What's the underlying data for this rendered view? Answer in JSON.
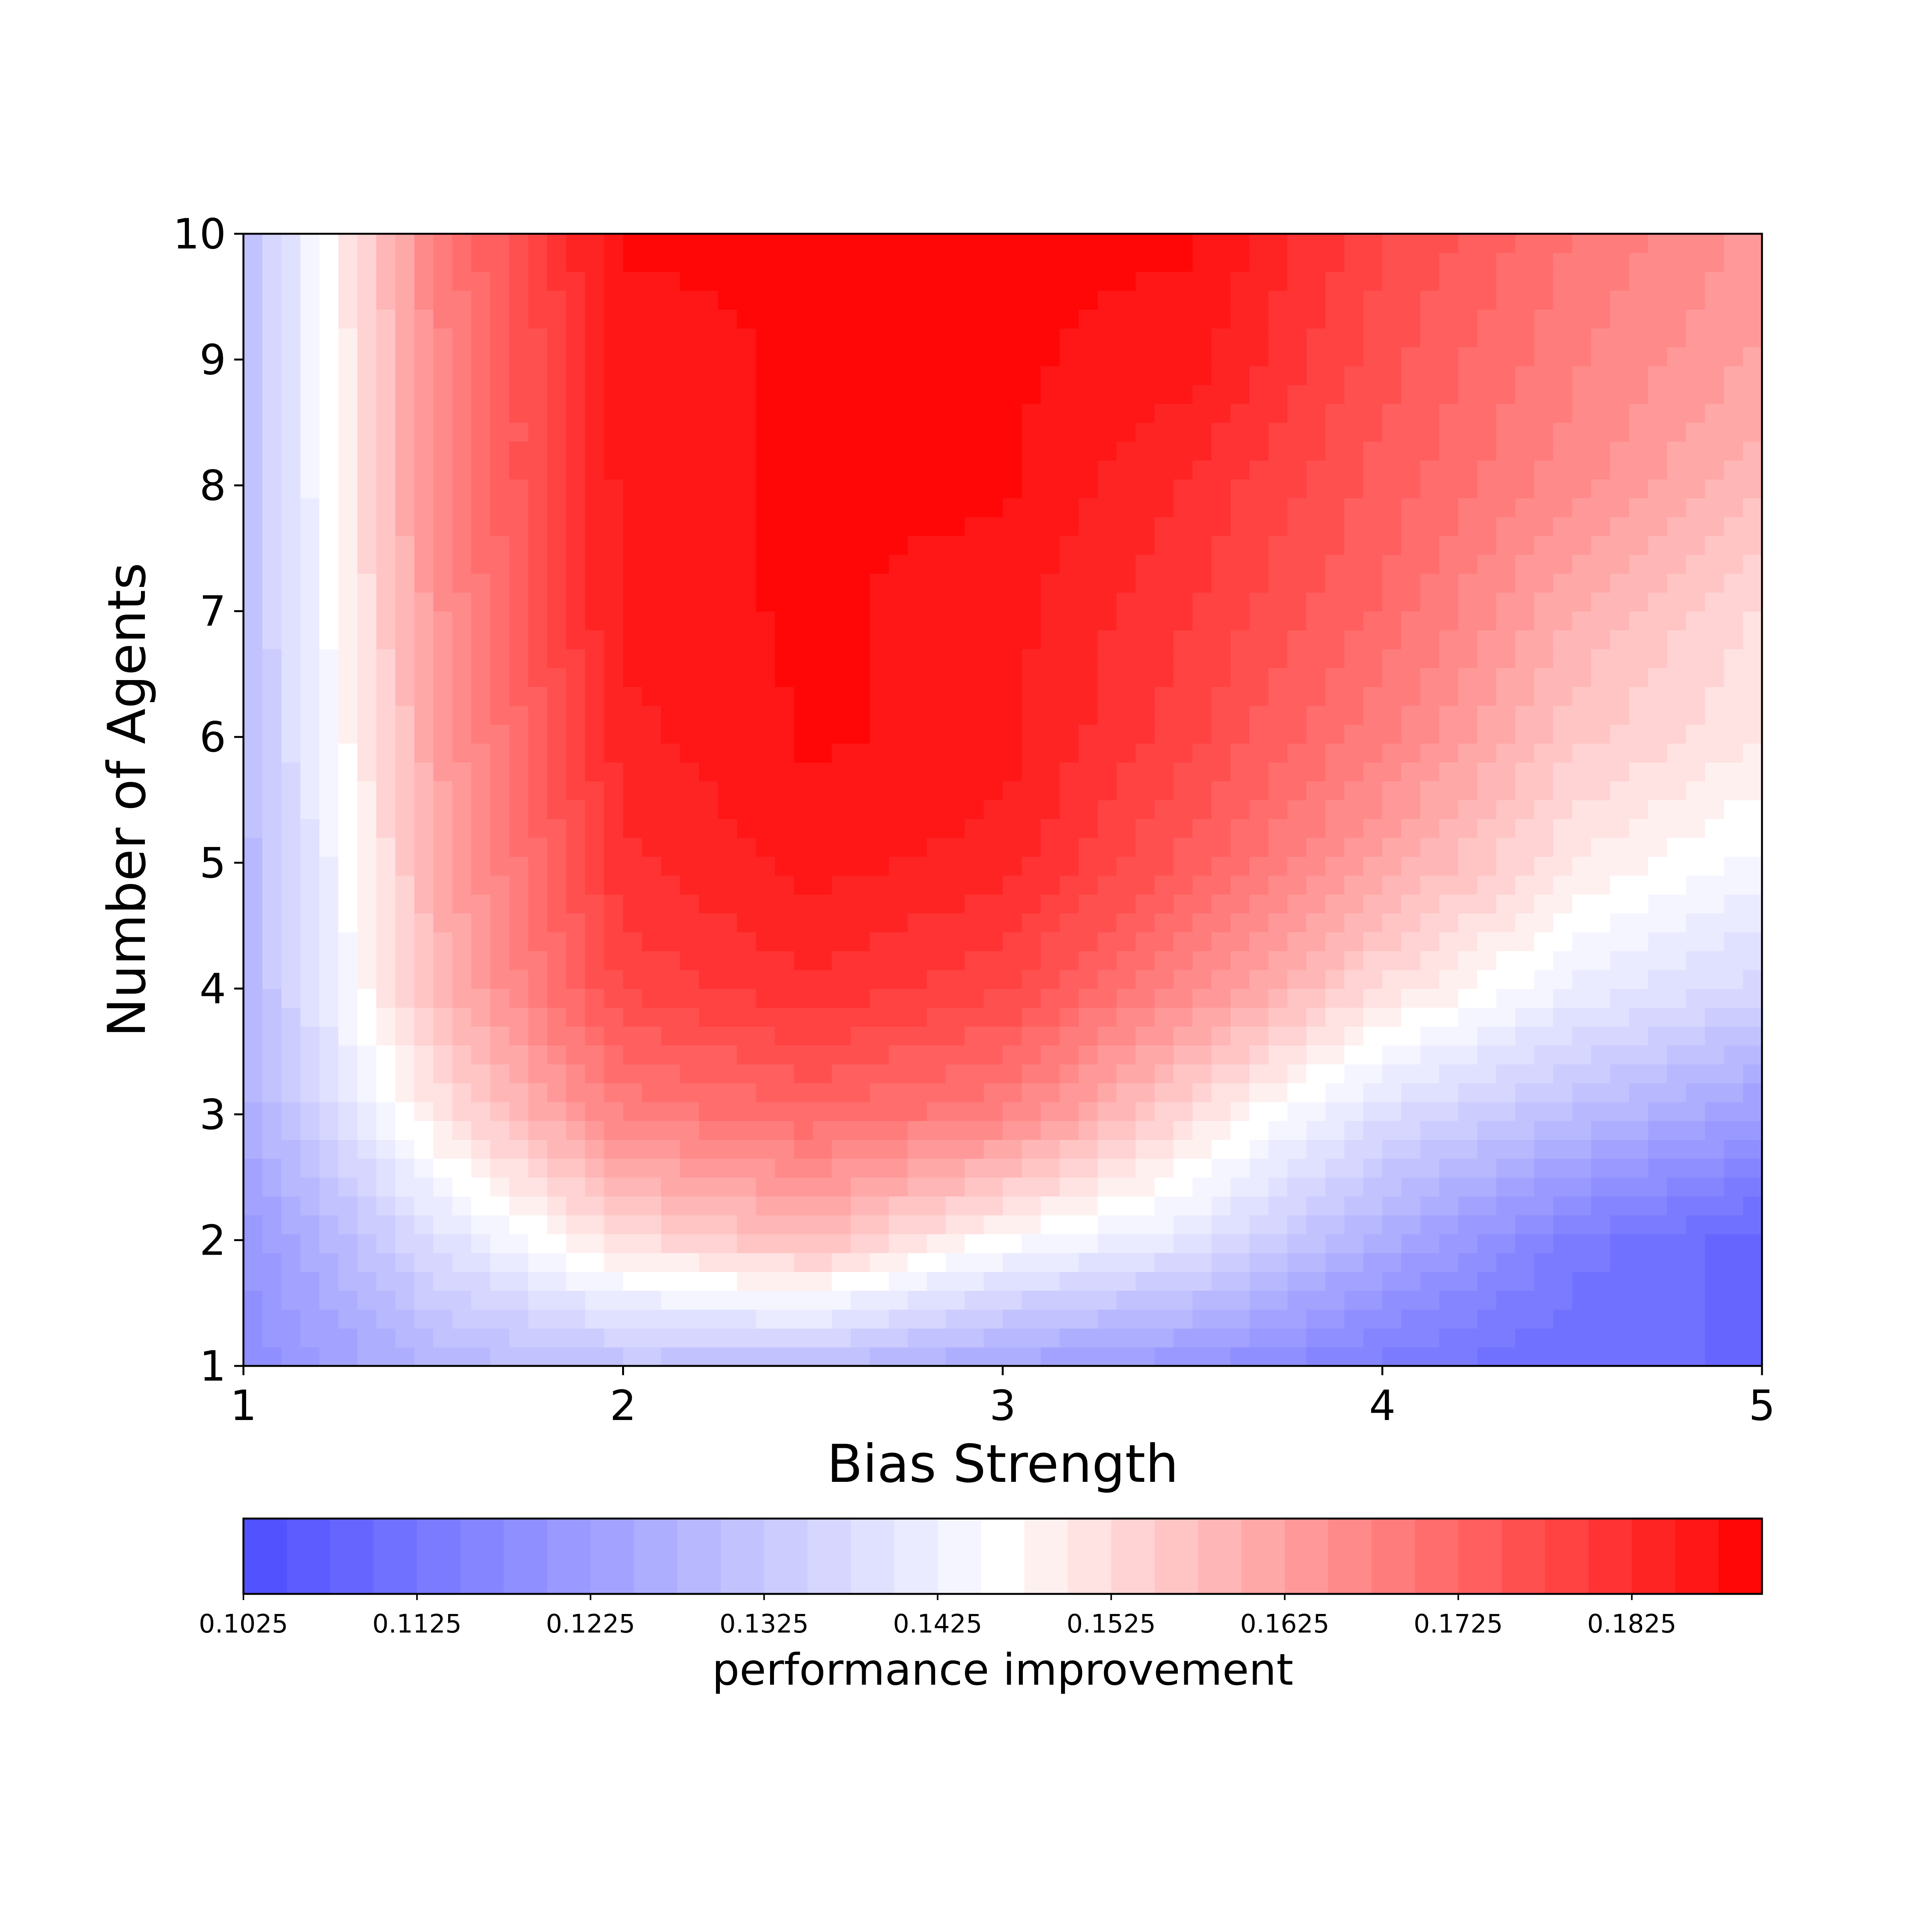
{
  "chart_data": {
    "type": "heatmap",
    "subtype": "filled-contour",
    "title": "",
    "xlabel": "Bias Strength",
    "ylabel": "Number of Agents",
    "xlim": [
      1,
      5
    ],
    "ylim": [
      1,
      10
    ],
    "xticks": [
      "1",
      "2",
      "3",
      "4",
      "5"
    ],
    "yticks": [
      "1",
      "2",
      "3",
      "4",
      "5",
      "6",
      "7",
      "8",
      "9",
      "10"
    ],
    "grid": false,
    "x": [
      1.0,
      1.5,
      2.0,
      2.5,
      3.0,
      3.5,
      4.0,
      4.5,
      5.0
    ],
    "y": [
      1,
      2,
      3,
      4,
      5,
      6,
      7,
      8,
      9,
      10
    ],
    "z": [
      [
        0.118,
        0.128,
        0.131,
        0.13,
        0.124,
        0.12,
        0.114,
        0.11,
        0.11
      ],
      [
        0.12,
        0.138,
        0.152,
        0.158,
        0.146,
        0.14,
        0.126,
        0.114,
        0.108
      ],
      [
        0.126,
        0.15,
        0.168,
        0.172,
        0.168,
        0.152,
        0.138,
        0.13,
        0.122
      ],
      [
        0.128,
        0.158,
        0.178,
        0.182,
        0.178,
        0.166,
        0.152,
        0.142,
        0.136
      ],
      [
        0.128,
        0.16,
        0.182,
        0.186,
        0.184,
        0.174,
        0.162,
        0.15,
        0.144
      ],
      [
        0.13,
        0.162,
        0.184,
        0.188,
        0.186,
        0.178,
        0.168,
        0.156,
        0.15
      ],
      [
        0.13,
        0.164,
        0.186,
        0.188,
        0.186,
        0.18,
        0.172,
        0.16,
        0.152
      ],
      [
        0.13,
        0.166,
        0.186,
        0.188,
        0.188,
        0.182,
        0.174,
        0.166,
        0.158
      ],
      [
        0.13,
        0.166,
        0.186,
        0.188,
        0.188,
        0.186,
        0.176,
        0.168,
        0.162
      ],
      [
        0.13,
        0.168,
        0.188,
        0.188,
        0.188,
        0.188,
        0.178,
        0.17,
        0.164
      ]
    ],
    "colorbar": {
      "label": "performance improvement",
      "ticks": [
        "0.1025",
        "0.1125",
        "0.1225",
        "0.1325",
        "0.1425",
        "0.1525",
        "0.1625",
        "0.1725",
        "0.1825"
      ],
      "min": 0.1025,
      "max": 0.19,
      "levels": 35,
      "cmap": "bwr",
      "low_color": "#4d4dff",
      "mid_color": "#ffffff",
      "high_color": "#ff0000"
    }
  }
}
